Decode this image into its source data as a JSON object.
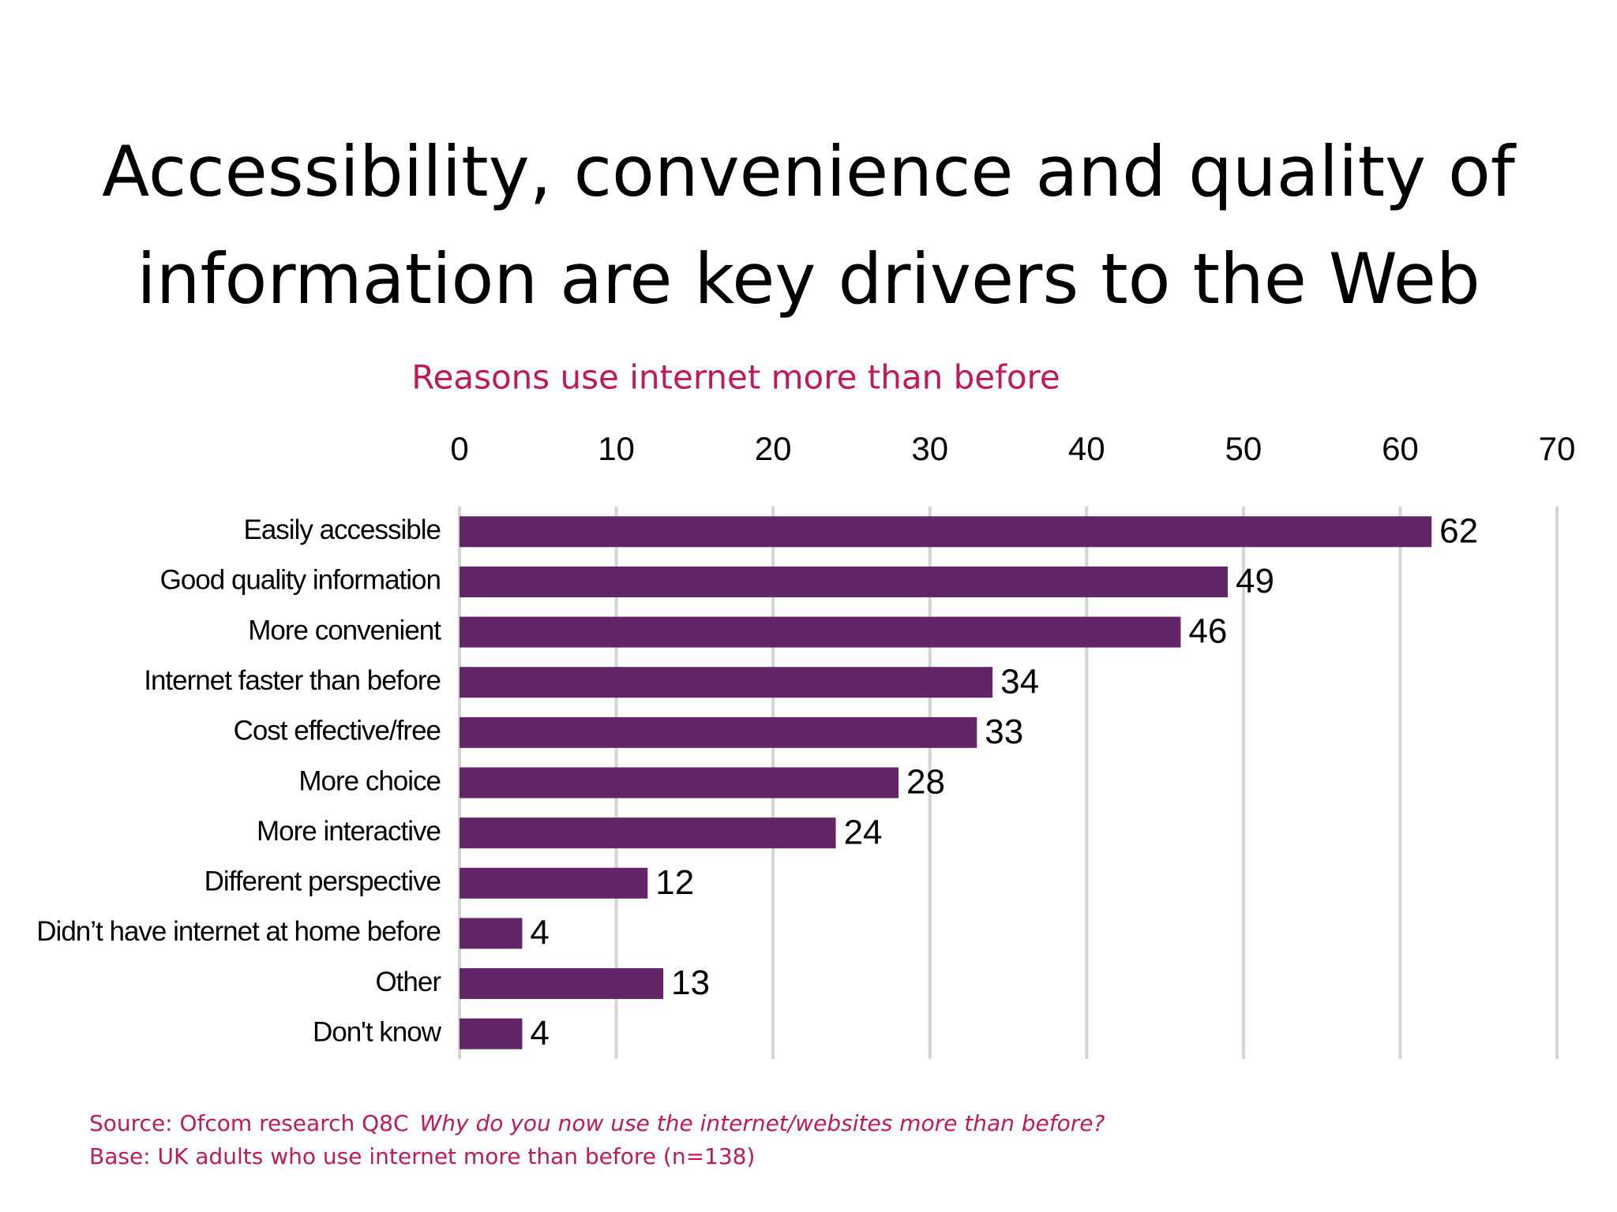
{
  "chart_data": {
    "type": "bar",
    "orientation": "horizontal",
    "title": "Accessibility, convenience and quality of information are key drivers to the Web",
    "subtitle": "Reasons use internet more than before",
    "categories": [
      "Easily accessible",
      "Good quality information",
      "More convenient",
      "Internet faster than before",
      "Cost effective/free",
      "More choice",
      "More interactive",
      "Different perspective",
      "Didn’t have internet at home before",
      "Other",
      "Don't know"
    ],
    "values": [
      62,
      49,
      46,
      34,
      33,
      28,
      24,
      12,
      4,
      13,
      4
    ],
    "color": "#622567",
    "xlim": [
      0,
      70
    ],
    "xticks": [
      0,
      10,
      20,
      30,
      40,
      50,
      60,
      70
    ],
    "grid": true,
    "source": "Source: Ofcom research Q8C",
    "source_question": "Why do you now use the internet/websites more than before?",
    "base": "Base: UK adults who use internet more than before (n=138)"
  }
}
